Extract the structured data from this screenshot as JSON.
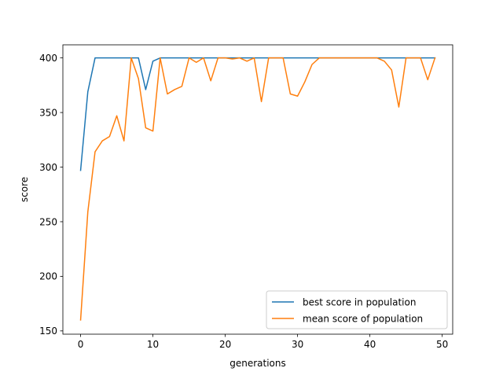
{
  "chart_data": {
    "type": "line",
    "title": "",
    "xlabel": "generations",
    "ylabel": "score",
    "xlim": [
      -2.45,
      51.45
    ],
    "ylim": [
      147,
      412
    ],
    "x_ticks": [
      0,
      10,
      20,
      30,
      40,
      50
    ],
    "y_ticks": [
      150,
      200,
      250,
      300,
      350,
      400
    ],
    "grid": false,
    "legend_position": "lower-right",
    "x": [
      0,
      1,
      2,
      3,
      4,
      5,
      6,
      7,
      8,
      9,
      10,
      11,
      12,
      13,
      14,
      15,
      16,
      17,
      18,
      19,
      20,
      21,
      22,
      23,
      24,
      25,
      26,
      27,
      28,
      29,
      30,
      31,
      32,
      33,
      34,
      35,
      36,
      37,
      38,
      39,
      40,
      41,
      42,
      43,
      44,
      45,
      46,
      47,
      48,
      49
    ],
    "series": [
      {
        "name": "best score in population",
        "color": "#1f77b4",
        "values": [
          297,
          369,
          400,
          400,
          400,
          400,
          400,
          400,
          400,
          371,
          397,
          400,
          400,
          400,
          400,
          400,
          400,
          400,
          400,
          400,
          400,
          400,
          400,
          400,
          400,
          400,
          400,
          400,
          400,
          400,
          400,
          400,
          400,
          400,
          400,
          400,
          400,
          400,
          400,
          400,
          400,
          400,
          400,
          400,
          400,
          400,
          400,
          400,
          400,
          400
        ]
      },
      {
        "name": "mean score of population",
        "color": "#ff7f0e",
        "values": [
          160,
          259,
          314,
          324,
          328,
          347,
          324,
          400,
          381,
          336,
          333,
          400,
          367,
          371,
          374,
          400,
          396,
          400,
          379,
          400,
          400,
          399,
          400,
          397,
          400,
          360,
          400,
          400,
          400,
          367,
          365,
          378,
          394,
          400,
          400,
          400,
          400,
          400,
          400,
          400,
          400,
          400,
          397,
          389,
          355,
          400,
          400,
          400,
          380,
          400
        ]
      }
    ]
  }
}
